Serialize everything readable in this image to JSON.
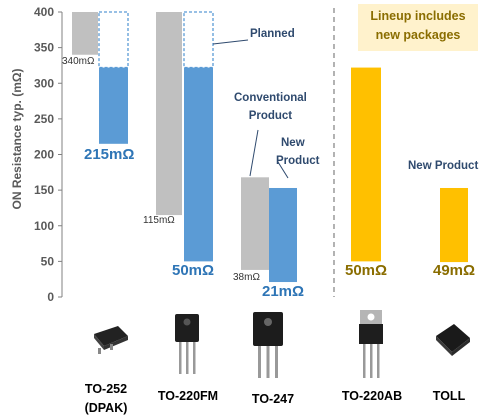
{
  "chart_data": {
    "type": "bar",
    "ylabel": "ON Resistance typ. (mΩ)",
    "ylim": [
      0,
      400
    ],
    "yticks": [
      0,
      50,
      100,
      150,
      200,
      250,
      300,
      350,
      400
    ],
    "groups": [
      {
        "package": "TO-252 (DPAK)",
        "conventional": 340,
        "new": 215,
        "conventional_label": "340mΩ",
        "new_label": "215mΩ"
      },
      {
        "package": "TO-220FM",
        "conventional": 115,
        "new": 50,
        "conventional_label": "115mΩ",
        "new_label": "50mΩ"
      },
      {
        "package": "TO-247",
        "conventional": 38,
        "new": 21,
        "conventional_label": "38mΩ",
        "new_label": "21mΩ"
      },
      {
        "package": "TO-220AB",
        "new": 50,
        "new_label": "50mΩ"
      },
      {
        "package": "TOLL",
        "new": 49,
        "new_label": "49mΩ"
      }
    ],
    "colors": {
      "conventional": "#c0c0c0",
      "new": "#5b9bd5",
      "new_packages": "#ffc000"
    }
  },
  "annotations": {
    "planned": "Planned",
    "conventional_line1": "Conventional",
    "conventional_line2": "Product",
    "new_line1": "New",
    "new_line2": "Product",
    "new_product": "New Product",
    "lineup_line1": "Lineup includes",
    "lineup_line2": "new packages"
  },
  "packages": {
    "dpak_line1": "TO-252",
    "dpak_line2": "(DPAK)",
    "to220fm": "TO-220FM",
    "to247": "TO-247",
    "to220ab": "TO-220AB",
    "toll": "TOLL"
  },
  "icons": [
    "dpak-package-icon",
    "to220fm-package-icon",
    "to247-package-icon",
    "to220ab-package-icon",
    "toll-package-icon"
  ]
}
